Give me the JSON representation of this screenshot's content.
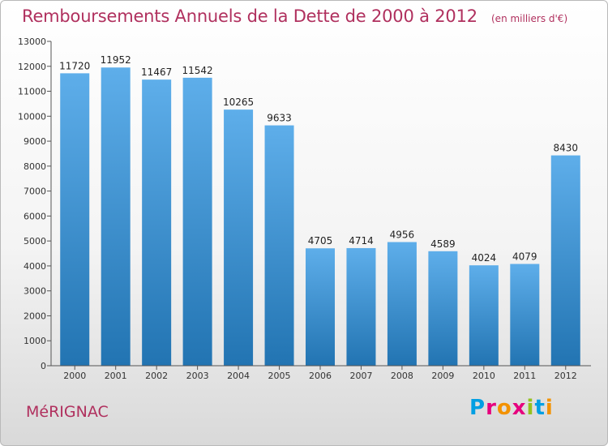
{
  "title": "Remboursements Annuels de la Dette de 2000 à 2012",
  "unit_note": "(en milliers d'€)",
  "commune": "MéRIGNAC",
  "logo": "Proxiti",
  "chart_data": {
    "type": "bar",
    "title": "Remboursements Annuels de la Dette de 2000 à 2012",
    "xlabel": "",
    "ylabel": "",
    "categories": [
      "2000",
      "2001",
      "2002",
      "2003",
      "2004",
      "2005",
      "2006",
      "2007",
      "2008",
      "2009",
      "2010",
      "2011",
      "2012"
    ],
    "values": [
      11720,
      11952,
      11467,
      11542,
      10265,
      9633,
      4705,
      4714,
      4956,
      4589,
      4024,
      4079,
      8430
    ],
    "data_labels": [
      "11720",
      "11952",
      "11467",
      "11542",
      "10265",
      "9633",
      "4705",
      "4714",
      "4956",
      "4589",
      "4024",
      "4079",
      "8430"
    ],
    "ylim": [
      0,
      13000
    ],
    "yticks": [
      0,
      1000,
      2000,
      3000,
      4000,
      5000,
      6000,
      7000,
      8000,
      9000,
      10000,
      11000,
      12000,
      13000
    ],
    "grid": false,
    "colors": {
      "bar_light": "#5eaeea",
      "bar_dark": "#2274b2",
      "axis": "#555555",
      "title": "#b0305e"
    }
  }
}
